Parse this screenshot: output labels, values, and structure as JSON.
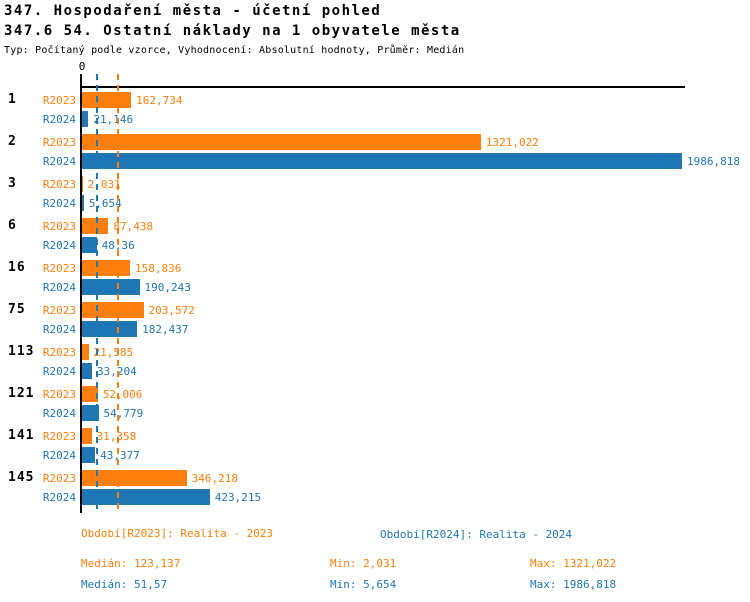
{
  "header": {
    "title1": "347. Hospodaření města - účetní pohled",
    "title2": "347.6 54. Ostatní náklady na 1 obyvatele města",
    "meta": "Typ: Počítaný podle vzorce, Vyhodnocení: Absolutní hodnoty, Průměr: Medián"
  },
  "colors": {
    "r2023": "#ff7f0e",
    "r2024": "#1f77b4",
    "axis": "#000000",
    "background": "#ffffff"
  },
  "chart_data": {
    "type": "bar",
    "orientation": "horizontal",
    "title": "347.6 54. Ostatní náklady na 1 obyvatele města",
    "value_axis": {
      "min": 0,
      "max": 2000,
      "zero_label": "0",
      "position": "top",
      "grid": false
    },
    "legend_position": "bottom",
    "categories": [
      "1",
      "2",
      "3",
      "6",
      "16",
      "75",
      "113",
      "121",
      "141",
      "145"
    ],
    "series": [
      {
        "name": "R2023",
        "color": "#ff7f0e",
        "values": [
          162.734,
          1321.022,
          2.031,
          87.438,
          158.836,
          203.572,
          21.585,
          52.006,
          31.358,
          346.218
        ],
        "labels": [
          "162,734",
          "1321,022",
          "2,031",
          "87,438",
          "158,836",
          "203,572",
          "21,585",
          "52,006",
          "31,358",
          "346,218"
        ]
      },
      {
        "name": "R2024",
        "color": "#1f77b4",
        "values": [
          21.146,
          1986.818,
          5.654,
          48.36,
          190.243,
          182.437,
          33.204,
          54.779,
          43.377,
          423.215
        ],
        "labels": [
          "21,146",
          "1986,818",
          "5,654",
          "48,36",
          "190,243",
          "182,437",
          "33,204",
          "54,779",
          "43,377",
          "423,215"
        ]
      }
    ],
    "medians": {
      "R2023": {
        "value": 123.137,
        "label": "123,137"
      },
      "R2024": {
        "value": 51.57,
        "label": "51,57"
      }
    },
    "stats": {
      "R2023": {
        "median": 123.137,
        "min": 2.031,
        "max": 1321.022
      },
      "R2024": {
        "median": 51.57,
        "min": 5.654,
        "max": 1986.818
      }
    }
  },
  "footer": {
    "period_r2023": "Období[R2023]: Realita - 2023",
    "period_r2024": "Období[R2024]: Realita - 2024",
    "median_r2023": "Medián: 123,137",
    "median_r2024": "Medián: 51,57",
    "min_r2023": "Min: 2,031",
    "min_r2024": "Min: 5,654",
    "max_r2023": "Max: 1321,022",
    "max_r2024": "Max: 1986,818"
  }
}
